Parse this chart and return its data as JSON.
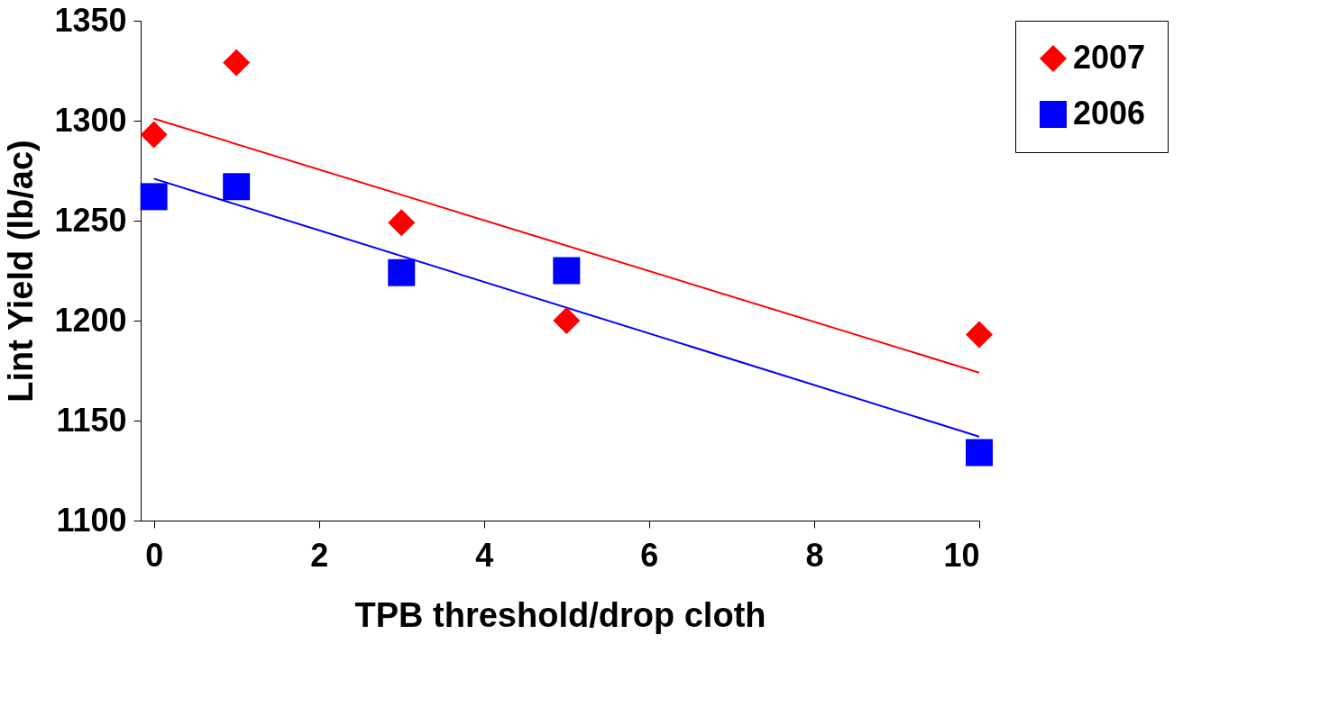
{
  "chart_data": {
    "type": "scatter",
    "xlabel": "TPB threshold/drop cloth",
    "ylabel": "Lint Yield (lb/ac)",
    "xlim": [
      -0.16,
      10
    ],
    "xticks": [
      0,
      2,
      4,
      6,
      8,
      10
    ],
    "ylim": [
      1100,
      1350
    ],
    "yticks": [
      1100,
      1150,
      1200,
      1250,
      1300,
      1350
    ],
    "grid": false,
    "legend": "right",
    "series": [
      {
        "name": "2007",
        "marker": "diamond",
        "color": "#ff0000",
        "x": [
          0,
          1,
          3,
          5,
          10
        ],
        "values": [
          1293,
          1329,
          1249,
          1200,
          1193
        ]
      },
      {
        "name": "2006",
        "marker": "square",
        "color": "#0000ff",
        "x": [
          0,
          1,
          3,
          5,
          10
        ],
        "values": [
          1262,
          1267,
          1224,
          1225,
          1134
        ]
      },
      {
        "type": "line",
        "color": "#ff0000",
        "x": [
          0,
          10
        ],
        "values": [
          1301,
          1174
        ]
      },
      {
        "type": "line",
        "color": "#0000ff",
        "x": [
          0,
          10
        ],
        "values": [
          1271,
          1142
        ]
      }
    ]
  }
}
